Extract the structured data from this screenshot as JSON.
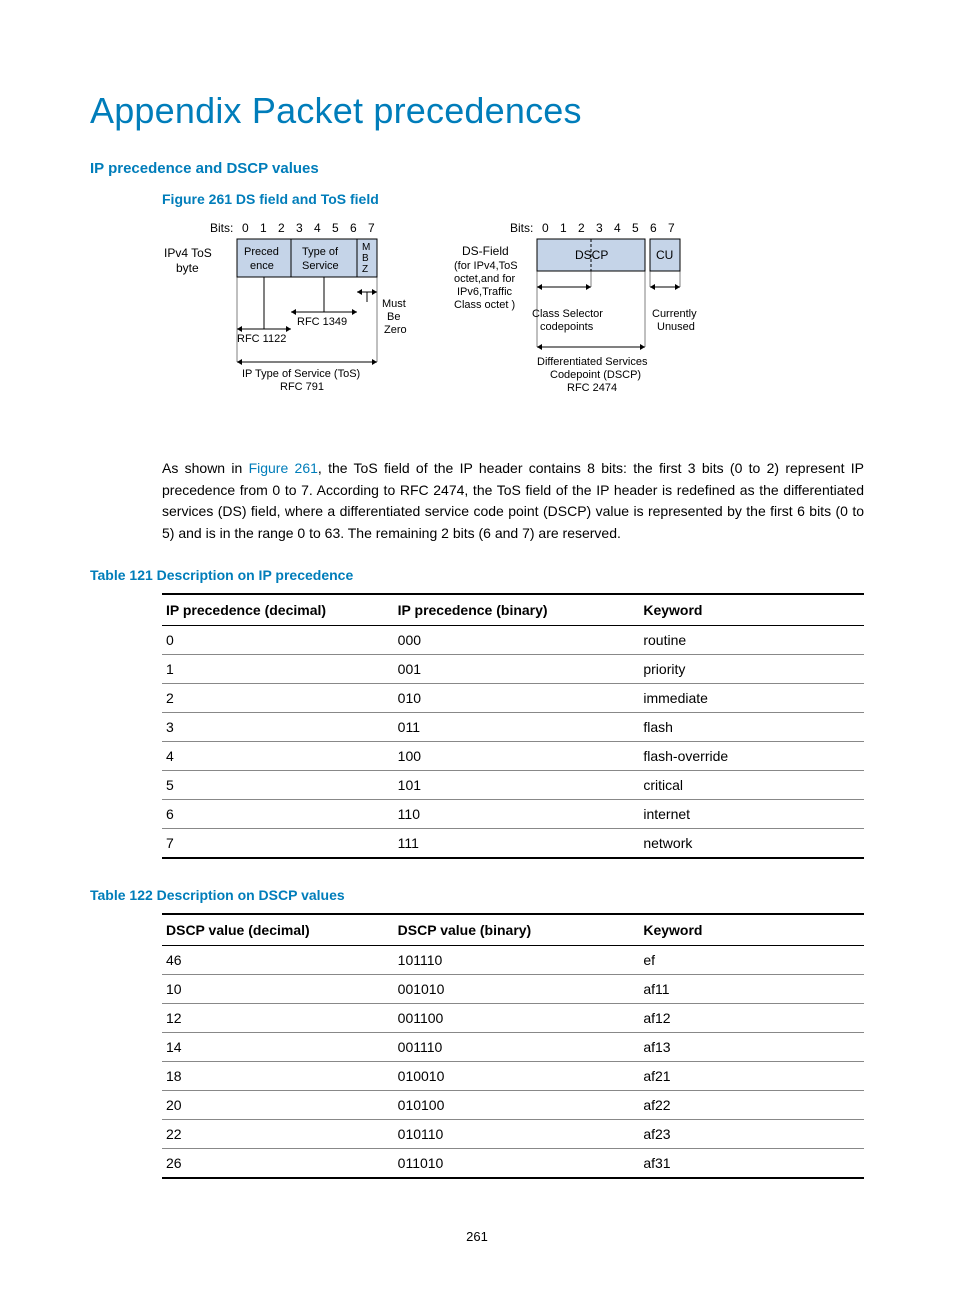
{
  "title": "Appendix Packet precedences",
  "section_heading": "IP precedence and DSCP values",
  "figure": {
    "caption": "Figure 261 DS field and ToS field",
    "left": {
      "bits_label": "Bits:",
      "bits": [
        "0",
        "1",
        "2",
        "3",
        "4",
        "5",
        "6",
        "7"
      ],
      "side_label_l1": "IPv4 ToS",
      "side_label_l2": "byte",
      "box1_l1": "Preced",
      "box1_l2": "ence",
      "box2_l1": "Type of",
      "box2_l2": "Service",
      "box3_l1": "M",
      "box3_l2": "B",
      "box3_l3": "Z",
      "rfc1122": "RFC 1122",
      "rfc1349": "RFC 1349",
      "mbz_l1": "Must",
      "mbz_l2": "Be",
      "mbz_l3": "Zero",
      "footer_l1": "IP Type of Service (ToS)",
      "footer_l2": "RFC 791"
    },
    "right": {
      "bits_label": "Bits:",
      "bits": [
        "0",
        "1",
        "2",
        "3",
        "4",
        "5",
        "6",
        "7"
      ],
      "side_label_l1": "DS-Field",
      "side_label_l2": "(for IPv4,ToS",
      "side_label_l3": "octet,and for",
      "side_label_l4": "IPv6,Traffic",
      "side_label_l5": "Class octet )",
      "box1": "DSCP",
      "box2": "CU",
      "cs_l1": "Class Selector",
      "cs_l2": "codepoints",
      "cu_l1": "Currently",
      "cu_l2": "Unused",
      "footer_l1": "Differentiated Services",
      "footer_l2": "Codepoint (DSCP)",
      "footer_l3": "RFC 2474"
    },
    "colors": {
      "box_fill": "#c5d4e8",
      "box_stroke": "#000000",
      "text": "#000000"
    }
  },
  "paragraph": {
    "pre": "As shown in ",
    "link": "Figure 261",
    "post": ", the ToS field of the IP header contains 8 bits: the first 3 bits (0 to 2) represent IP precedence from 0 to 7. According to RFC 2474, the ToS field of the IP header is redefined as the differentiated services (DS) field, where a differentiated service code point (DSCP) value is represented by the first 6 bits (0 to 5) and is in the range 0 to 63. The remaining 2 bits (6 and 7) are reserved."
  },
  "table121": {
    "caption": "Table 121 Description on IP precedence",
    "columns": [
      "IP precedence (decimal)",
      "IP precedence (binary)",
      "Keyword"
    ],
    "rows": [
      [
        "0",
        "000",
        "routine"
      ],
      [
        "1",
        "001",
        "priority"
      ],
      [
        "2",
        "010",
        "immediate"
      ],
      [
        "3",
        "011",
        "flash"
      ],
      [
        "4",
        "100",
        "flash-override"
      ],
      [
        "5",
        "101",
        "critical"
      ],
      [
        "6",
        "110",
        "internet"
      ],
      [
        "7",
        "111",
        "network"
      ]
    ]
  },
  "table122": {
    "caption": "Table 122 Description on DSCP values",
    "columns": [
      "DSCP value (decimal)",
      "DSCP value (binary)",
      "Keyword"
    ],
    "rows": [
      [
        "46",
        "101110",
        "ef"
      ],
      [
        "10",
        "001010",
        "af11"
      ],
      [
        "12",
        "001100",
        "af12"
      ],
      [
        "14",
        "001110",
        "af13"
      ],
      [
        "18",
        "010010",
        "af21"
      ],
      [
        "20",
        "010100",
        "af22"
      ],
      [
        "22",
        "010110",
        "af23"
      ],
      [
        "26",
        "011010",
        "af31"
      ]
    ]
  },
  "page_number": "261"
}
